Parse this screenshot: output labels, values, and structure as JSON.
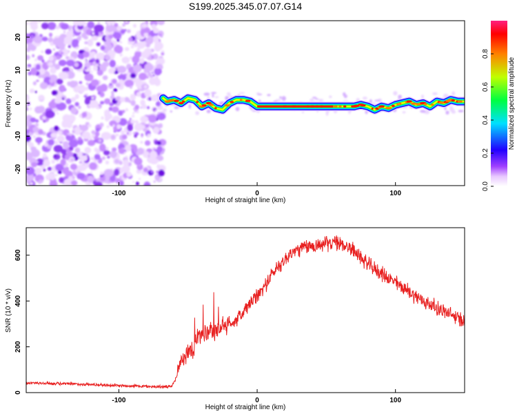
{
  "figure_title": "S199.2025.345.07.07.G14",
  "chart_data": [
    {
      "type": "heatmap",
      "title": "S199.2025.345.07.07.G14",
      "xlabel": "Height of straight line (km)",
      "ylabel": "Frequency (Hz)",
      "xlim": [
        -167,
        150
      ],
      "ylim": [
        -25,
        25
      ],
      "xticks": [
        -100,
        0,
        100
      ],
      "yticks": [
        20,
        10,
        0,
        -10,
        -20
      ],
      "noise_region_x": [
        -167,
        -68
      ],
      "signal_region_x": [
        -68,
        150
      ],
      "ridge": {
        "description": "frequency of spectral peak vs height",
        "x": [
          -68,
          -65,
          -60,
          -55,
          -50,
          -45,
          -40,
          -35,
          -30,
          -25,
          -20,
          -15,
          -10,
          -5,
          0,
          10,
          20,
          30,
          40,
          50,
          60,
          70,
          75,
          80,
          85,
          90,
          95,
          100,
          105,
          110,
          115,
          120,
          125,
          130,
          135,
          140,
          145,
          150
        ],
        "y": [
          1.5,
          0.5,
          1.0,
          0.0,
          1.5,
          1.0,
          -1.0,
          0.0,
          -1.5,
          -2.0,
          0.0,
          1.0,
          1.0,
          0.5,
          -1.0,
          -1.0,
          -1.0,
          -1.0,
          -1.0,
          -1.0,
          -1.0,
          -1.0,
          -0.5,
          -1.0,
          -2.0,
          -1.0,
          -1.5,
          -0.5,
          0.0,
          0.5,
          -0.5,
          0.0,
          -1.0,
          0.5,
          0.0,
          1.0,
          0.5,
          0.5
        ],
        "amplitude_range": [
          0.6,
          1.0
        ]
      },
      "colorbar": {
        "label": "Normalized spectral amplitude",
        "range": [
          0.0,
          1.0
        ],
        "ticks": [
          0.0,
          0.2,
          0.4,
          0.6,
          0.8
        ],
        "tick_labels": [
          "0.0",
          "0.2",
          "0.4",
          "0.6",
          "0.8"
        ],
        "colors": [
          "#ffffff",
          "#e8c8ff",
          "#a040ff",
          "#2000ff",
          "#00e0ff",
          "#00ff40",
          "#c0ff00",
          "#ff8000",
          "#ff0000",
          "#ff2080"
        ]
      }
    },
    {
      "type": "line",
      "xlabel": "Height of straight line (km)",
      "ylabel": "SNR (10 * v/v)",
      "xlim": [
        -167,
        150
      ],
      "ylim": [
        0,
        720
      ],
      "xticks": [
        -100,
        0,
        100
      ],
      "yticks": [
        0,
        200,
        400,
        600
      ],
      "series": [
        {
          "name": "SNR",
          "color": "#e82020",
          "x": [
            -167,
            -150,
            -130,
            -110,
            -90,
            -75,
            -62,
            -58,
            -56,
            -54,
            -50,
            -45,
            -42,
            -40,
            -35,
            -30,
            -25,
            -20,
            -15,
            -10,
            -5,
            0,
            5,
            10,
            15,
            20,
            25,
            30,
            35,
            40,
            45,
            50,
            55,
            60,
            65,
            70,
            75,
            80,
            90,
            100,
            110,
            120,
            130,
            140,
            150
          ],
          "values": [
            42,
            40,
            37,
            33,
            29,
            26,
            25,
            70,
            130,
            150,
            180,
            210,
            250,
            240,
            260,
            270,
            290,
            300,
            320,
            350,
            390,
            420,
            460,
            510,
            550,
            580,
            610,
            625,
            635,
            640,
            645,
            650,
            655,
            650,
            640,
            620,
            590,
            560,
            520,
            480,
            440,
            400,
            370,
            340,
            310
          ]
        }
      ]
    }
  ]
}
